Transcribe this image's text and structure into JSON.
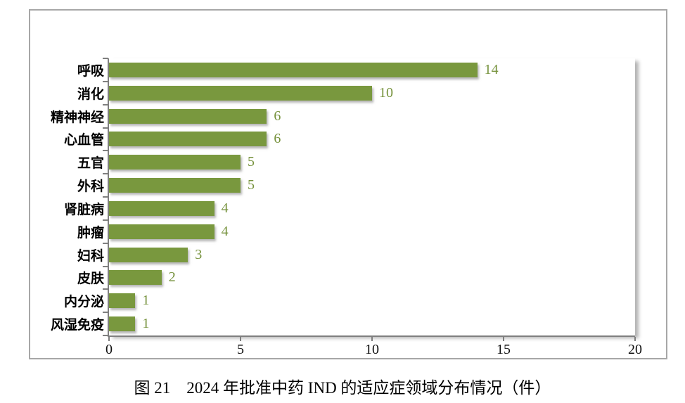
{
  "caption": "图 21　2024 年批准中药 IND 的适应症领域分布情况（件）",
  "colors": {
    "bar_fill": "#79983E",
    "value_label": "#76923C",
    "axis_line": "#7f7f7f",
    "figure_border": "#a7a7a7",
    "text": "#000000"
  },
  "chart_data": {
    "type": "bar",
    "orientation": "horizontal",
    "title": "图 21　2024 年批准中药 IND 的适应症领域分布情况（件）",
    "xlabel": "",
    "ylabel": "",
    "categories": [
      "呼吸",
      "消化",
      "精神神经",
      "心血管",
      "五官",
      "外科",
      "肾脏病",
      "肿瘤",
      "妇科",
      "皮肤",
      "内分泌",
      "风湿免疫"
    ],
    "values": [
      14,
      10,
      6,
      6,
      5,
      5,
      4,
      4,
      3,
      2,
      1,
      1
    ],
    "data_labels": [
      "14",
      "10",
      "6",
      "6",
      "5",
      "5",
      "4",
      "4",
      "3",
      "2",
      "1",
      "1"
    ],
    "xlim": [
      0,
      20
    ],
    "x_ticks": [
      0,
      5,
      10,
      15,
      20
    ],
    "x_tick_labels": [
      "0",
      "5",
      "10",
      "15",
      "20"
    ],
    "grid": false,
    "legend": "none",
    "bar_color": "#79983E"
  }
}
